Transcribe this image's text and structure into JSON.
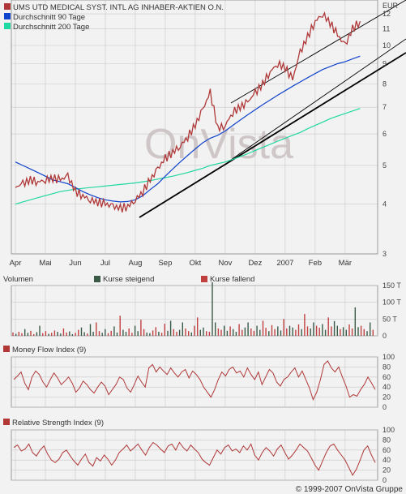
{
  "copyright": "© 1999-2007 OnVista Gruppe",
  "watermark": "OnVista",
  "currency": "EUR",
  "colors": {
    "background": "#f2f2f2",
    "grid": "#c8c8c8",
    "price": "#b03838",
    "ma90": "#1144cc",
    "ma200": "#20d8a0",
    "volume_up": "#3a5a48",
    "volume_down": "#c04040",
    "indicator": "#b03838",
    "trend": "#000000"
  },
  "chart_data": [
    {
      "type": "line",
      "panel": "price",
      "y_scale": "log",
      "ylim": [
        3,
        13
      ],
      "yticks": [
        "3",
        "4",
        "5",
        "6",
        "7",
        "8",
        "9",
        "10",
        "11",
        "12"
      ],
      "months": [
        "Apr",
        "Mai",
        "Jun",
        "Jul",
        "Aug",
        "Sep",
        "Okt",
        "Nov",
        "Dez",
        "2007",
        "Feb",
        "Mär"
      ],
      "legend": [
        {
          "label": "UMS UTD MEDICAL SYST. INTL AG INHABER-AKTIEN O.N.",
          "color": "#b03838"
        },
        {
          "label": "Durchschnitt 90 Tage",
          "color": "#1144cc"
        },
        {
          "label": "Durchschnitt 200 Tage",
          "color": "#20d8a0"
        }
      ],
      "x_month_index": [
        0,
        0.25,
        0.5,
        0.75,
        1,
        1.25,
        1.5,
        1.75,
        2,
        2.25,
        2.5,
        2.75,
        3,
        3.25,
        3.5,
        3.75,
        4,
        4.25,
        4.5,
        4.75,
        5,
        5.25,
        5.5,
        5.75,
        6,
        6.25,
        6.5,
        6.75,
        7,
        7.25,
        7.5,
        7.75,
        8,
        8.25,
        8.5,
        8.75,
        9,
        9.25,
        9.5,
        9.75,
        10,
        10.25,
        10.5,
        10.75,
        11,
        11.25,
        11.5
      ],
      "series": [
        {
          "key": "price",
          "values": [
            4.4,
            4.5,
            4.6,
            4.55,
            4.6,
            4.65,
            4.6,
            4.7,
            4.3,
            4.2,
            4.1,
            4.05,
            4.0,
            3.95,
            3.9,
            3.95,
            4.1,
            4.3,
            4.6,
            4.9,
            5.2,
            5.4,
            5.6,
            5.9,
            6.3,
            6.9,
            7.6,
            6.2,
            6.3,
            6.8,
            7.0,
            7.2,
            7.6,
            8.0,
            8.6,
            9.0,
            8.8,
            8.2,
            9.6,
            10.5,
            11.5,
            12.0,
            11.4,
            10.6,
            10.0,
            11.0,
            11.5
          ]
        },
        {
          "key": "ma90",
          "values": [
            5.1,
            5.0,
            4.9,
            4.8,
            4.7,
            4.6,
            4.55,
            4.5,
            4.4,
            4.3,
            4.22,
            4.15,
            4.1,
            4.07,
            4.05,
            4.06,
            4.1,
            4.2,
            4.35,
            4.5,
            4.7,
            4.9,
            5.1,
            5.3,
            5.5,
            5.7,
            5.85,
            5.95,
            6.1,
            6.3,
            6.5,
            6.7,
            6.9,
            7.1,
            7.3,
            7.5,
            7.7,
            7.9,
            8.1,
            8.3,
            8.5,
            8.7,
            8.85,
            9.0,
            9.1,
            9.25,
            9.4
          ]
        },
        {
          "key": "ma200",
          "values": [
            4.0,
            4.05,
            4.1,
            4.15,
            4.2,
            4.25,
            4.3,
            4.33,
            4.36,
            4.38,
            4.4,
            4.42,
            4.44,
            4.46,
            4.48,
            4.5,
            4.52,
            4.55,
            4.58,
            4.62,
            4.66,
            4.7,
            4.75,
            4.8,
            4.86,
            4.92,
            5.0,
            5.05,
            5.1,
            5.18,
            5.26,
            5.35,
            5.45,
            5.55,
            5.65,
            5.75,
            5.85,
            5.95,
            6.05,
            6.18,
            6.3,
            6.42,
            6.55,
            6.65,
            6.75,
            6.85,
            6.95
          ]
        }
      ]
    },
    {
      "type": "bar",
      "panel": "volume",
      "title": "Volumen",
      "legend": [
        {
          "label": "Kurse steigend",
          "color": "#3a5a48"
        },
        {
          "label": "Kurse fallend",
          "color": "#c04040"
        }
      ],
      "ylim": [
        0,
        150
      ],
      "yticks": [
        "0",
        "50 T",
        "100 T",
        "150 T"
      ],
      "values_thousands": [
        10,
        6,
        12,
        8,
        20,
        9,
        15,
        5,
        11,
        30,
        8,
        14,
        6,
        9,
        16,
        12,
        7,
        22,
        10,
        13,
        5,
        9,
        18,
        25,
        11,
        7,
        35,
        12,
        40,
        14,
        9,
        20,
        8,
        15,
        28,
        10,
        60,
        18,
        12,
        22,
        9,
        30,
        14,
        48,
        20,
        10,
        8,
        16,
        26,
        12,
        9,
        36,
        15,
        45,
        20,
        12,
        18,
        40,
        22,
        14,
        10,
        30,
        55,
        18,
        25,
        14,
        12,
        160,
        40,
        22,
        18,
        30,
        15,
        28,
        20,
        12,
        35,
        18,
        25,
        40,
        22,
        15,
        30,
        18,
        45,
        24,
        14,
        32,
        20,
        28,
        16,
        50,
        22,
        30,
        25,
        18,
        34,
        20,
        65,
        28,
        22,
        40,
        30,
        24,
        35,
        18,
        55,
        28,
        44,
        30,
        20,
        26,
        18,
        34,
        22,
        85,
        26,
        30,
        20,
        14,
        40,
        18
      ]
    },
    {
      "type": "line",
      "panel": "mfi",
      "title": "Money Flow Index (9)",
      "ylim": [
        0,
        100
      ],
      "yticks": [
        "0",
        "20",
        "40",
        "60",
        "80",
        "100"
      ],
      "values": [
        55,
        62,
        70,
        48,
        35,
        60,
        72,
        65,
        50,
        40,
        55,
        68,
        58,
        45,
        52,
        60,
        48,
        30,
        38,
        52,
        45,
        35,
        28,
        40,
        50,
        42,
        25,
        35,
        45,
        60,
        55,
        38,
        30,
        45,
        62,
        50,
        40,
        78,
        85,
        70,
        80,
        72,
        65,
        78,
        68,
        60,
        70,
        75,
        58,
        72,
        65,
        55,
        40,
        30,
        20,
        35,
        55,
        70,
        62,
        75,
        80,
        68,
        72,
        60,
        78,
        65,
        55,
        70,
        45,
        60,
        75,
        68,
        50,
        42,
        55,
        60,
        70,
        78,
        60,
        72,
        55,
        38,
        15,
        30,
        55,
        85,
        92,
        78,
        70,
        80,
        60,
        42,
        20,
        25,
        22,
        35,
        45,
        60,
        48,
        35
      ]
    },
    {
      "type": "line",
      "panel": "rsi",
      "title": "Relative Strength Index (9)",
      "ylim": [
        0,
        100
      ],
      "yticks": [
        "0",
        "20",
        "40",
        "60",
        "80",
        "100"
      ],
      "values": [
        65,
        70,
        58,
        62,
        72,
        55,
        48,
        60,
        68,
        52,
        40,
        35,
        42,
        55,
        60,
        48,
        38,
        30,
        42,
        52,
        35,
        28,
        45,
        38,
        50,
        42,
        30,
        40,
        55,
        62,
        70,
        58,
        65,
        72,
        60,
        50,
        65,
        75,
        70,
        62,
        55,
        68,
        72,
        60,
        75,
        65,
        58,
        70,
        62,
        55,
        42,
        35,
        30,
        45,
        60,
        52,
        65,
        70,
        58,
        62,
        55,
        68,
        60,
        72,
        50,
        40,
        55,
        65,
        58,
        48,
        62,
        70,
        55,
        42,
        50,
        60,
        72,
        65,
        58,
        45,
        30,
        20,
        38,
        55,
        68,
        72,
        60,
        50,
        40,
        25,
        10,
        22,
        40,
        60,
        68,
        50,
        35
      ]
    }
  ]
}
